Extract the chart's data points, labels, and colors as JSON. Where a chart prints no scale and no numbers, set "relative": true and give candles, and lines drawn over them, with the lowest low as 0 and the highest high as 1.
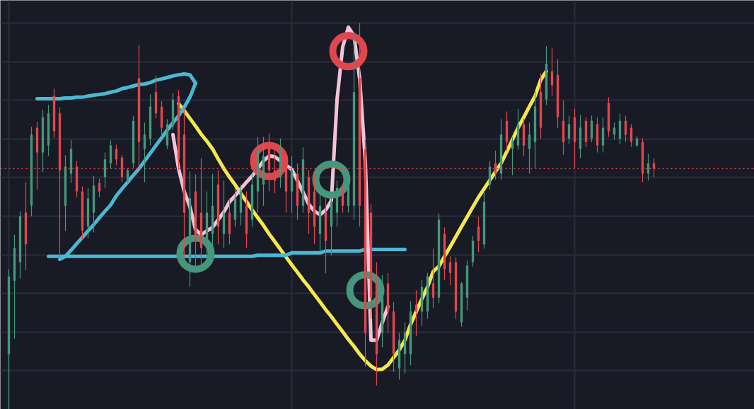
{
  "chart_data": {
    "type": "candlestick",
    "relative": true,
    "grid": true,
    "tick_labels": false,
    "categories": [
      null,
      null,
      null,
      null,
      null,
      null,
      null,
      null,
      null,
      null,
      null,
      null,
      null,
      null,
      null,
      null,
      null,
      null,
      null,
      null,
      null,
      null,
      null,
      null,
      null,
      null,
      null,
      null,
      null,
      null,
      null,
      null,
      null,
      null,
      null,
      null,
      null,
      null,
      null,
      null,
      null,
      null,
      null,
      null,
      null,
      null,
      null,
      null,
      null,
      null,
      null,
      null,
      null,
      null,
      null,
      null,
      null,
      null,
      null,
      null,
      null,
      null,
      null,
      null,
      null,
      null,
      null,
      null,
      null,
      null,
      null,
      null,
      null,
      null,
      null,
      null,
      null,
      null,
      null,
      null,
      null,
      null,
      null,
      null,
      null,
      null,
      null,
      null,
      null,
      null,
      null,
      null,
      null,
      null,
      null,
      null,
      null,
      null,
      null,
      null,
      null,
      null,
      null,
      null,
      null,
      null,
      null,
      null,
      null,
      null,
      null,
      null,
      null,
      null,
      null
    ],
    "ohlc": [
      [
        0.143,
        0.363,
        0,
        0.344
      ],
      [
        0.333,
        0.452,
        0.183,
        0.418
      ],
      [
        0.381,
        0.513,
        0.339,
        0.5
      ],
      [
        0.509,
        0.588,
        0.361,
        0.427
      ],
      [
        0.527,
        0.731,
        0.5,
        0.711
      ],
      [
        0.729,
        0.745,
        0.568,
        0.665
      ],
      [
        0.665,
        0.775,
        0.614,
        0.756
      ],
      [
        0.683,
        0.788,
        0.656,
        0.766
      ],
      [
        0.811,
        0.83,
        0.703,
        0.72
      ],
      [
        0.766,
        0.782,
        0.394,
        0.619
      ],
      [
        0.527,
        0.658,
        0.462,
        0.628
      ],
      [
        0.61,
        0.698,
        0.586,
        0.674
      ],
      [
        0.628,
        0.643,
        0.549,
        0.564
      ],
      [
        0.564,
        0.577,
        0.44,
        0.463
      ],
      [
        0.473,
        0.573,
        0.443,
        0.546
      ],
      [
        0.509,
        0.604,
        0.458,
        0.579
      ],
      [
        0.586,
        0.597,
        0.549,
        0.564
      ],
      [
        0.601,
        0.665,
        0.573,
        0.647
      ],
      [
        0.637,
        0.696,
        0.623,
        0.683
      ],
      [
        0.674,
        0.685,
        0.632,
        0.647
      ],
      [
        0.652,
        0.658,
        0.588,
        0.601
      ],
      [
        0.592,
        0.625,
        0.586,
        0.619
      ],
      [
        0.637,
        0.76,
        0.625,
        0.747
      ],
      [
        0.857,
        0.943,
        0.625,
        0.692
      ],
      [
        0.674,
        0.742,
        0.588,
        0.711
      ],
      [
        0.701,
        0.815,
        0.683,
        0.784
      ],
      [
        0.821,
        0.864,
        0.753,
        0.766
      ],
      [
        0.784,
        0.797,
        0.705,
        0.729
      ],
      [
        0.683,
        0.751,
        0.674,
        0.738
      ],
      [
        0.733,
        0.819,
        0.723,
        0.802
      ],
      [
        0.811,
        0.826,
        0.619,
        0.647
      ],
      [
        0.711,
        0.778,
        0.394,
        0.509
      ],
      [
        0.381,
        0.615,
        0.317,
        0.546
      ],
      [
        0.564,
        0.608,
        0.353,
        0.436
      ],
      [
        0.509,
        0.65,
        0.363,
        0.418
      ],
      [
        0.418,
        0.564,
        0.381,
        0.509
      ],
      [
        0.454,
        0.61,
        0.399,
        0.527
      ],
      [
        0.582,
        0.619,
        0.427,
        0.473
      ],
      [
        0.454,
        0.592,
        0.418,
        0.509
      ],
      [
        0.509,
        0.546,
        0.427,
        0.454
      ],
      [
        0.491,
        0.573,
        0.473,
        0.546
      ],
      [
        0.509,
        0.582,
        0.476,
        0.564
      ],
      [
        0.527,
        0.564,
        0.418,
        0.454
      ],
      [
        0.491,
        0.61,
        0.473,
        0.582
      ],
      [
        0.564,
        0.705,
        0.509,
        0.674
      ],
      [
        0.582,
        0.705,
        0.527,
        0.656
      ],
      [
        0.692,
        0.714,
        0.564,
        0.619
      ],
      [
        0.619,
        0.674,
        0.56,
        0.592
      ],
      [
        0.601,
        0.701,
        0.573,
        0.665
      ],
      [
        0.628,
        0.652,
        0.509,
        0.564
      ],
      [
        0.564,
        0.656,
        0.509,
        0.619
      ],
      [
        0.61,
        0.637,
        0.491,
        0.527
      ],
      [
        0.527,
        0.678,
        0.509,
        0.647
      ],
      [
        0.601,
        0.619,
        0.454,
        0.509
      ],
      [
        0.564,
        0.61,
        0.427,
        0.473
      ],
      [
        0.454,
        0.564,
        0.408,
        0.527
      ],
      [
        0.509,
        0.546,
        0.352,
        0.436
      ],
      [
        0.473,
        0.564,
        0.399,
        0.537
      ],
      [
        0.509,
        0.592,
        0.473,
        0.573
      ],
      [
        0.564,
        0.579,
        0.509,
        0.527
      ],
      [
        0.527,
        0.601,
        0.509,
        0.579
      ],
      [
        0.527,
        0.976,
        0.491,
        0.821
      ],
      [
        0.857,
        1,
        0.473,
        0.527
      ],
      [
        0.674,
        0.698,
        0.11,
        0.198
      ],
      [
        0.509,
        0.531,
        0.234,
        0.289
      ],
      [
        0.326,
        0.381,
        0.062,
        0.143
      ],
      [
        0.198,
        0.348,
        0.161,
        0.289
      ],
      [
        0.326,
        0.353,
        0.198,
        0.253
      ],
      [
        0.253,
        0.278,
        0.097,
        0.143
      ],
      [
        0.106,
        0.198,
        0.077,
        0.179
      ],
      [
        0.143,
        0.225,
        0.092,
        0.198
      ],
      [
        0.143,
        0.28,
        0.114,
        0.253
      ],
      [
        0.271,
        0.308,
        0.189,
        0.253
      ],
      [
        0.253,
        0.335,
        0.216,
        0.317
      ],
      [
        0.253,
        0.353,
        0.234,
        0.344
      ],
      [
        0.326,
        0.416,
        0.262,
        0.289
      ],
      [
        0.289,
        0.507,
        0.275,
        0.491
      ],
      [
        0.454,
        0.471,
        0.335,
        0.363
      ],
      [
        0.381,
        0.397,
        0.321,
        0.353
      ],
      [
        0.381,
        0.394,
        0.233,
        0.253
      ],
      [
        0.225,
        0.33,
        0.214,
        0.326
      ],
      [
        0.289,
        0.385,
        0.256,
        0.372
      ],
      [
        0.381,
        0.449,
        0.37,
        0.436
      ],
      [
        0.473,
        0.498,
        0.407,
        0.436
      ],
      [
        0.427,
        0.564,
        0.416,
        0.537
      ],
      [
        0.582,
        0.643,
        0.568,
        0.628
      ],
      [
        0.637,
        0.67,
        0.595,
        0.61
      ],
      [
        0.61,
        0.751,
        0.595,
        0.711
      ],
      [
        0.747,
        0.771,
        0.668,
        0.692
      ],
      [
        0.674,
        0.705,
        0.606,
        0.696
      ],
      [
        0.683,
        0.778,
        0.672,
        0.738
      ],
      [
        0.738,
        0.753,
        0.656,
        0.683
      ],
      [
        0.674,
        0.742,
        0.61,
        0.711
      ],
      [
        0.692,
        0.826,
        0.625,
        0.784
      ],
      [
        0.821,
        0.87,
        0.701,
        0.729
      ],
      [
        0.802,
        0.94,
        0.788,
        0.894
      ],
      [
        0.875,
        0.936,
        0.811,
        0.839
      ],
      [
        0.866,
        0.907,
        0.729,
        0.756
      ],
      [
        0.747,
        0.799,
        0.659,
        0.692
      ],
      [
        0.701,
        0.76,
        0.687,
        0.738
      ],
      [
        0.756,
        0.778,
        0.625,
        0.692
      ],
      [
        0.674,
        0.762,
        0.65,
        0.729
      ],
      [
        0.747,
        0.756,
        0.679,
        0.692
      ],
      [
        0.701,
        0.76,
        0.692,
        0.747
      ],
      [
        0.738,
        0.756,
        0.665,
        0.683
      ],
      [
        0.683,
        0.756,
        0.665,
        0.729
      ],
      [
        0.793,
        0.808,
        0.705,
        0.72
      ],
      [
        0.711,
        0.742,
        0.698,
        0.729
      ],
      [
        0.701,
        0.766,
        0.687,
        0.747
      ],
      [
        0.747,
        0.76,
        0.692,
        0.711
      ],
      [
        0.729,
        0.738,
        0.679,
        0.692
      ],
      [
        0.683,
        0.707,
        0.679,
        0.701
      ],
      [
        0.692,
        0.701,
        0.588,
        0.61
      ],
      [
        0.61,
        0.661,
        0.592,
        0.637
      ],
      [
        0.637,
        0.65,
        0.601,
        0.623
      ]
    ],
    "colors": [
      "#45977c",
      "#45977c",
      "#45977c",
      "#e0474d",
      "#45977c",
      "#e0474d",
      "#45977c",
      "#45977c",
      "#e0474d",
      "#e0474d",
      "#45977c",
      "#45977c",
      "#e0474d",
      "#e0474d",
      "#45977c",
      "#45977c",
      "#e0474d",
      "#45977c",
      "#45977c",
      "#e0474d",
      "#e0474d",
      "#45977c",
      "#45977c",
      "#e0474d",
      "#45977c",
      "#45977c",
      "#e0474d",
      "#e0474d",
      "#45977c",
      "#45977c",
      "#e0474d",
      "#e0474d",
      "#45977c",
      "#e0474d",
      "#e0474d",
      "#45977c",
      "#45977c",
      "#e0474d",
      "#45977c",
      "#e0474d",
      "#45977c",
      "#45977c",
      "#e0474d",
      "#45977c",
      "#45977c",
      "#45977c",
      "#e0474d",
      "#e0474d",
      "#45977c",
      "#e0474d",
      "#45977c",
      "#e0474d",
      "#45977c",
      "#e0474d",
      "#e0474d",
      "#45977c",
      "#e0474d",
      "#45977c",
      "#45977c",
      "#e0474d",
      "#45977c",
      "#45977c",
      "#e0474d",
      "#e0474d",
      "#e0474d",
      "#e0474d",
      "#45977c",
      "#e0474d",
      "#e0474d",
      "#45977c",
      "#45977c",
      "#45977c",
      "#e0474d",
      "#45977c",
      "#45977c",
      "#e0474d",
      "#45977c",
      "#e0474d",
      "#e0474d",
      "#e0474d",
      "#45977c",
      "#45977c",
      "#45977c",
      "#e0474d",
      "#45977c",
      "#45977c",
      "#e0474d",
      "#45977c",
      "#e0474d",
      "#45977c",
      "#45977c",
      "#e0474d",
      "#45977c",
      "#45977c",
      "#e0474d",
      "#45977c",
      "#e0474d",
      "#e0474d",
      "#e0474d",
      "#45977c",
      "#e0474d",
      "#45977c",
      "#e0474d",
      "#45977c",
      "#e0474d",
      "#45977c",
      "#e0474d",
      "#45977c",
      "#45977c",
      "#e0474d",
      "#e0474d",
      "#45977c",
      "#e0474d",
      "#45977c",
      "#e0474d"
    ],
    "ref_lines": [
      {
        "axis": "y",
        "value": 0.623,
        "color": "#e0474d",
        "line_style": "dotted"
      }
    ],
    "series": [
      {
        "type": "line",
        "color": "#f5e84c",
        "values": [
          null,
          null,
          null,
          null,
          null,
          null,
          null,
          null,
          null,
          null,
          null,
          null,
          null,
          null,
          null,
          null,
          null,
          null,
          null,
          null,
          null,
          null,
          null,
          null,
          null,
          null,
          null,
          null,
          null,
          null,
          0.791,
          0.773,
          0.753,
          0.733,
          0.712,
          0.694,
          0.674,
          0.648,
          0.623,
          0.601,
          0.581,
          0.559,
          0.538,
          0.516,
          0.496,
          0.476,
          0.454,
          0.434,
          0.414,
          0.394,
          0.374,
          0.355,
          0.335,
          0.317,
          0.297,
          0.278,
          0.258,
          0.24,
          0.22,
          0.201,
          0.181,
          0.163,
          0.143,
          0.126,
          0.112,
          0.103,
          0.104,
          0.115,
          0.134,
          0.154,
          0.179,
          0.22,
          0.253,
          0.286,
          0.317,
          0.357,
          0.37,
          0.396,
          0.421,
          0.447,
          0.473,
          0.498,
          0.524,
          0.549,
          0.571,
          0.593,
          0.615,
          0.637,
          0.667,
          0.698,
          0.729,
          0.756,
          0.784,
          0.811,
          0.853,
          0.875,
          null,
          null,
          null,
          null,
          null,
          null,
          null,
          null,
          null,
          null,
          null,
          null,
          null,
          null,
          null,
          null,
          null,
          null,
          null
        ]
      },
      {
        "type": "line",
        "color": "#4bb8d3",
        "values": [
          null,
          null,
          null,
          null,
          null,
          0.804,
          0.804,
          0.804,
          0.804,
          0.804,
          0.806,
          0.806,
          0.808,
          0.808,
          0.811,
          0.813,
          0.815,
          0.817,
          0.821,
          0.824,
          0.83,
          0.833,
          0.837,
          0.841,
          0.842,
          0.846,
          0.852,
          0.855,
          0.859,
          0.863,
          0.866,
          0.868,
          0.866,
          0.844,
          null,
          null,
          null,
          null,
          null,
          null,
          null,
          null,
          null,
          null,
          null,
          null,
          null,
          null,
          null,
          null,
          null,
          null,
          null,
          null,
          null,
          null,
          null,
          null,
          null,
          null,
          null,
          null,
          null,
          null,
          null,
          null,
          null,
          null,
          null,
          null,
          null,
          null,
          null,
          null,
          null,
          null,
          null,
          null,
          null,
          null,
          null,
          null,
          null,
          null,
          null,
          null,
          null,
          null,
          null,
          null,
          null,
          null,
          null,
          null,
          null,
          null,
          null,
          null,
          null,
          null,
          null,
          null,
          null,
          null,
          null,
          null,
          null,
          null,
          null,
          null,
          null,
          null,
          null,
          null,
          null
        ]
      },
      {
        "type": "line",
        "color": "#4bb8d3",
        "values": [
          null,
          null,
          null,
          null,
          null,
          null,
          null,
          null,
          null,
          0.388,
          0.396,
          0.412,
          0.429,
          0.445,
          0.462,
          0.478,
          0.496,
          0.513,
          0.529,
          0.553,
          0.571,
          0.588,
          0.606,
          0.623,
          0.643,
          0.663,
          0.683,
          0.703,
          0.723,
          0.742,
          0.76,
          0.782,
          0.808,
          0.844,
          null,
          null,
          null,
          null,
          null,
          null,
          null,
          null,
          null,
          null,
          null,
          null,
          null,
          null,
          null,
          null,
          null,
          null,
          null,
          null,
          null,
          null,
          null,
          null,
          null,
          null,
          null,
          null,
          null,
          null,
          null,
          null,
          null,
          null,
          null,
          null,
          null,
          null,
          null,
          null,
          null,
          null,
          null,
          null,
          null,
          null,
          null,
          null,
          null,
          null,
          null,
          null,
          null,
          null,
          null,
          null,
          null,
          null,
          null,
          null,
          null,
          null,
          null,
          null,
          null,
          null,
          null,
          null,
          null,
          null,
          null,
          null,
          null,
          null,
          null,
          null,
          null,
          null,
          null,
          null,
          null
        ]
      },
      {
        "type": "line",
        "color": "#4bb8d3",
        "values": [
          null,
          null,
          null,
          null,
          null,
          null,
          null,
          0.396,
          0.396,
          0.396,
          0.396,
          0.396,
          0.396,
          0.396,
          0.396,
          0.396,
          0.396,
          0.396,
          0.396,
          0.396,
          0.396,
          0.396,
          0.396,
          0.396,
          0.396,
          0.396,
          0.396,
          0.396,
          0.396,
          0.396,
          0.396,
          0.396,
          0.396,
          0.396,
          0.396,
          0.396,
          0.396,
          0.396,
          0.396,
          0.396,
          0.396,
          0.396,
          0.396,
          0.396,
          0.399,
          0.399,
          0.399,
          0.399,
          0.399,
          0.399,
          0.405,
          0.405,
          0.405,
          0.405,
          0.405,
          0.405,
          0.41,
          0.41,
          0.41,
          0.41,
          0.41,
          0.41,
          0.41,
          0.414,
          0.414,
          0.414,
          0.414,
          0.414,
          0.414,
          0.414,
          0.414,
          null,
          null,
          null,
          null,
          null,
          null,
          null,
          null,
          null,
          null,
          null,
          null,
          null,
          null,
          null,
          null,
          null,
          null,
          null,
          null,
          null,
          null,
          null,
          null,
          null,
          null,
          null,
          null,
          null,
          null,
          null,
          null,
          null,
          null,
          null,
          null,
          null,
          null,
          null,
          null,
          null,
          null,
          null,
          null
        ]
      },
      {
        "type": "line",
        "color": "#f2c4d8",
        "values": [
          null,
          null,
          null,
          null,
          null,
          null,
          null,
          null,
          null,
          null,
          null,
          null,
          null,
          null,
          null,
          null,
          null,
          null,
          null,
          null,
          null,
          null,
          null,
          null,
          null,
          null,
          null,
          null,
          null,
          0.711,
          0.623,
          0.564,
          0.524,
          0.465,
          0.452,
          0.462,
          0.471,
          0.491,
          0.511,
          0.537,
          0.553,
          0.571,
          0.588,
          0.604,
          0.623,
          0.643,
          0.656,
          0.654,
          0.643,
          0.632,
          0.621,
          0.592,
          0.562,
          0.531,
          0.513,
          0.504,
          0.516,
          0.54,
          0.802,
          0.938,
          0.989,
          0.967,
          0.855,
          0.643,
          0.179,
          0.179,
          0.225,
          0.266,
          null,
          null,
          null,
          null,
          null,
          null,
          null,
          null,
          null,
          null,
          null,
          null,
          null,
          null,
          null,
          null,
          null,
          null,
          null,
          null,
          null,
          null,
          null,
          null,
          null,
          null,
          null,
          null,
          null,
          null,
          null,
          null,
          null,
          null,
          null,
          null,
          null,
          null,
          null,
          null,
          null,
          null,
          null,
          null,
          null,
          null,
          null
        ]
      },
      {
        "type": "scatter",
        "marker": "circle",
        "color": "#e0474d",
        "values": [
          null,
          null,
          null,
          null,
          null,
          null,
          null,
          null,
          null,
          null,
          null,
          null,
          null,
          null,
          null,
          null,
          null,
          null,
          null,
          null,
          null,
          null,
          null,
          null,
          null,
          null,
          null,
          null,
          null,
          null,
          null,
          null,
          null,
          null,
          null,
          null,
          null,
          null,
          null,
          null,
          null,
          null,
          null,
          null,
          null,
          null,
          0.643,
          null,
          null,
          null,
          null,
          null,
          null,
          null,
          null,
          null,
          null,
          null,
          null,
          null,
          0.927,
          null,
          null,
          null,
          null,
          null,
          null,
          null,
          null,
          null,
          null,
          null,
          null,
          null,
          null,
          null,
          null,
          null,
          null,
          null,
          null,
          null,
          null,
          null,
          null,
          null,
          null,
          null,
          null,
          null,
          null,
          null,
          null,
          null,
          null,
          null,
          null,
          null,
          null,
          null,
          null,
          null,
          null,
          null,
          null,
          null,
          null,
          null,
          null,
          null,
          null,
          null,
          null,
          null,
          null
        ]
      },
      {
        "type": "scatter",
        "marker": "circle",
        "color": "#45977c",
        "values": [
          null,
          null,
          null,
          null,
          null,
          null,
          null,
          null,
          null,
          null,
          null,
          null,
          null,
          null,
          null,
          null,
          null,
          null,
          null,
          null,
          null,
          null,
          null,
          null,
          null,
          null,
          null,
          null,
          null,
          null,
          null,
          null,
          null,
          0.403,
          null,
          null,
          null,
          null,
          null,
          null,
          null,
          null,
          null,
          null,
          null,
          null,
          null,
          null,
          null,
          null,
          null,
          null,
          null,
          null,
          null,
          null,
          null,
          0.595,
          null,
          null,
          null,
          null,
          null,
          0.308,
          null,
          null,
          null,
          null,
          null,
          null,
          null,
          null,
          null,
          null,
          null,
          null,
          null,
          null,
          null,
          null,
          null,
          null,
          null,
          null,
          null,
          null,
          null,
          null,
          null,
          null,
          null,
          null,
          null,
          null,
          null,
          null,
          null,
          null,
          null,
          null,
          null,
          null,
          null,
          null,
          null,
          null,
          null,
          null,
          null,
          null,
          null,
          null,
          null,
          null,
          null
        ]
      }
    ]
  }
}
